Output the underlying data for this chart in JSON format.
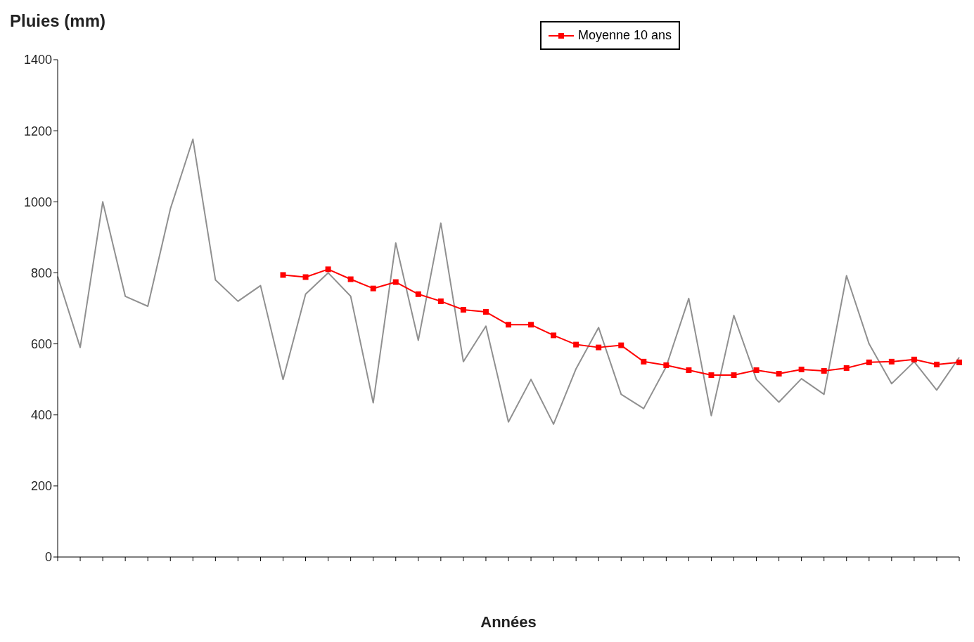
{
  "chart_data": {
    "type": "line",
    "xlabel": "Années",
    "ylabel": "Pluies (mm)",
    "categories": [
      null,
      null,
      null,
      null,
      null,
      null,
      null,
      null,
      null,
      null,
      null,
      null,
      null,
      null,
      null,
      null,
      null,
      null,
      null,
      null,
      null,
      null,
      null,
      null,
      null,
      null,
      null,
      null,
      null,
      null,
      null,
      null,
      null,
      null,
      null,
      null,
      null,
      null,
      null,
      null,
      null
    ],
    "ylim": [
      0,
      1400
    ],
    "yticks": [
      0,
      200,
      400,
      600,
      800,
      1000,
      1200,
      1400
    ],
    "legend": "top right",
    "line_style": "solid",
    "series": [
      {
        "color": "#909090",
        "marker": "none",
        "values": [
          790,
          590,
          1000,
          734,
          706,
          980,
          1176,
          780,
          720,
          764,
          500,
          740,
          800,
          734,
          434,
          884,
          610,
          940,
          550,
          650,
          380,
          500,
          374,
          530,
          646,
          458,
          418,
          536,
          728,
          398,
          680,
          500,
          436,
          502,
          458,
          792,
          600,
          488,
          550,
          470,
          562
        ]
      },
      {
        "name": "Moyenne 10 ans",
        "color": "#ff0000",
        "marker": "square",
        "values": [
          null,
          null,
          null,
          null,
          null,
          null,
          null,
          null,
          null,
          null,
          794,
          788,
          810,
          782,
          756,
          774,
          740,
          720,
          696,
          690,
          654,
          654,
          624,
          598,
          590,
          596,
          550,
          540,
          526,
          512,
          512,
          526,
          516,
          528,
          524,
          532,
          548,
          550,
          556,
          542,
          548
        ]
      }
    ]
  }
}
